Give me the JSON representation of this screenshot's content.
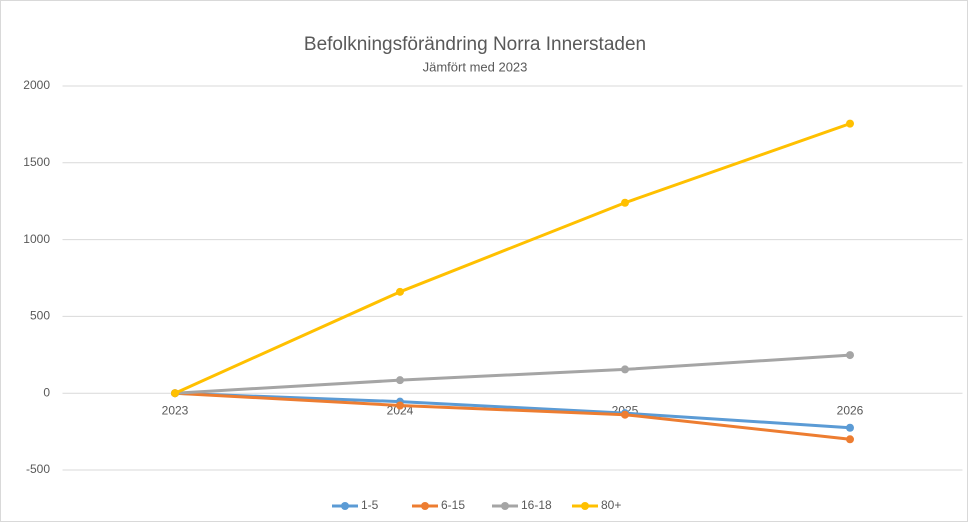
{
  "chart_data": {
    "type": "line",
    "title": "Befolkningsförändring Norra Innerstaden",
    "subtitle": "Jämfört med 2023",
    "categories": [
      "2023",
      "2024",
      "2025",
      "2026"
    ],
    "series": [
      {
        "name": "1-5",
        "color": "#5b9bd5",
        "values": [
          0,
          -55,
          -130,
          -225
        ]
      },
      {
        "name": "6-15",
        "color": "#ed7d31",
        "values": [
          0,
          -80,
          -140,
          -300
        ]
      },
      {
        "name": "16-18",
        "color": "#a5a5a5",
        "values": [
          0,
          85,
          155,
          248
        ]
      },
      {
        "name": "80+",
        "color": "#ffc000",
        "values": [
          0,
          660,
          1240,
          1755
        ]
      }
    ],
    "ylim": [
      -500,
      2000
    ],
    "yticks": [
      -500,
      0,
      500,
      1000,
      1500,
      2000
    ],
    "grid": true,
    "legend": "bottom"
  }
}
